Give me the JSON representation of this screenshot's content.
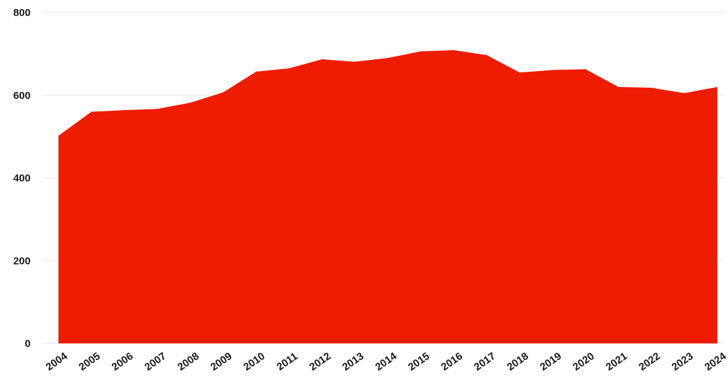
{
  "chart_data": {
    "type": "area",
    "title": "",
    "xlabel": "",
    "ylabel": "",
    "x": [
      "2004",
      "2005",
      "2006",
      "2007",
      "2008",
      "2009",
      "2010",
      "2011",
      "2012",
      "2013",
      "2014",
      "2015",
      "2016",
      "2017",
      "2018",
      "2019",
      "2020",
      "2021",
      "2022",
      "2023",
      "2024"
    ],
    "y_ticks": [
      "0",
      "200",
      "400",
      "600",
      "800"
    ],
    "ylim": [
      0,
      800
    ],
    "grid": true,
    "legend": "none",
    "series": [
      {
        "color": "#ee1c00",
        "values": [
          502,
          560,
          564,
          567,
          582,
          607,
          657,
          665,
          687,
          681,
          690,
          706,
          709,
          697,
          655,
          661,
          663,
          620,
          618,
          605,
          620
        ]
      }
    ]
  }
}
